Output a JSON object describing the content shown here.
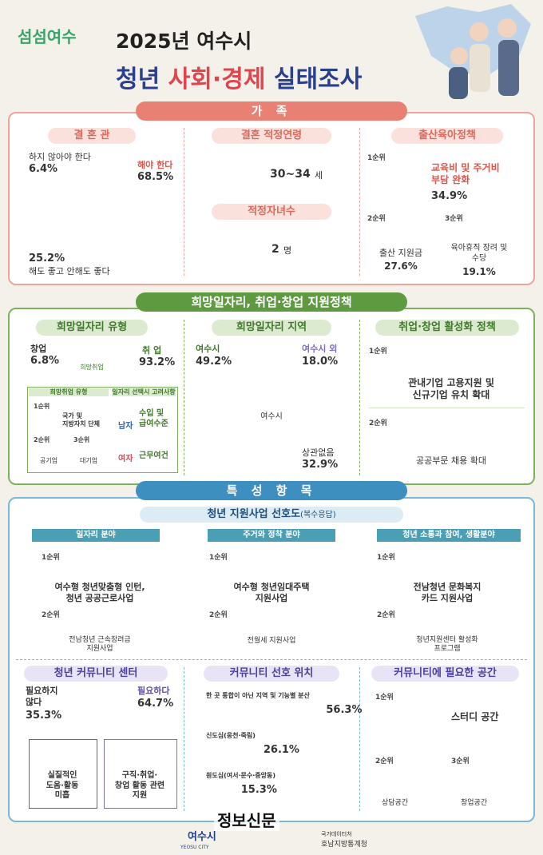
{
  "header": {
    "logo": "섬섬여수",
    "title_line1": "2025년 여수시",
    "title_a": "청년",
    "title_b": "사회·경제",
    "title_c": "실태조사"
  },
  "family": {
    "title": "가  족",
    "marriage_view": {
      "title": "결 혼 관",
      "items": [
        {
          "label": "해야 한다",
          "value": 68.5,
          "value_label": "68.5%",
          "color": "#e8645a"
        },
        {
          "label": "해도 좋고 안해도 좋다",
          "value": 25.2,
          "value_label": "25.2%",
          "color": "#f6c1ba"
        },
        {
          "label": "하지 않아야 한다",
          "value": 6.4,
          "value_label": "6.4%",
          "color": "#d9d9d9"
        }
      ]
    },
    "marriage_age": {
      "title": "결혼 적정연령",
      "value": "30~34",
      "unit": "세"
    },
    "children": {
      "title": "적정자녀수",
      "value": "2",
      "unit": "명"
    },
    "birth_policy": {
      "title": "출산육아정책",
      "ranks": [
        {
          "rank": "1순위",
          "label": "교육비 및 주거비\n부담 완화",
          "value": "34.9%"
        },
        {
          "rank": "2순위",
          "label": "출산 지원금",
          "value": "27.6%"
        },
        {
          "rank": "3순위",
          "label": "육아휴직 장려 및\n수당",
          "value": "19.1%"
        }
      ]
    }
  },
  "jobs": {
    "title": "희망일자리, 취업·창업 지원정책",
    "job_type": {
      "title": "희망일자리 유형",
      "center": "희망취업",
      "items": [
        {
          "label": "창업",
          "value": 6.8,
          "value_label": "6.8%",
          "color": "#cfcfcf"
        },
        {
          "label": "취 업",
          "value": 93.2,
          "value_label": "93.2%",
          "color": "#5e9a3f"
        }
      ],
      "employment_type": {
        "title": "희망취업 유형",
        "ranks": [
          {
            "rank": "1순위",
            "label": "국가 및\n지방자치 단체"
          },
          {
            "rank": "2순위",
            "label": "공기업"
          },
          {
            "rank": "3순위",
            "label": "대기업"
          }
        ]
      },
      "selection_factors": {
        "title": "일자리 선택시 고려사항",
        "items": [
          {
            "group": "남자",
            "label": "수입 및\n급여수준"
          },
          {
            "group": "여자",
            "label": "근무여건"
          }
        ]
      }
    },
    "job_region": {
      "title": "희망일자리 지역",
      "center": "여수시",
      "items": [
        {
          "label": "여수시 외",
          "value": 18.0,
          "value_label": "18.0%",
          "color": "#a99bd6"
        },
        {
          "label": "상관없음",
          "value": 32.9,
          "value_label": "32.9%",
          "color": "#f0e8d8"
        },
        {
          "label": "여수시",
          "value": 49.2,
          "value_label": "49.2%",
          "color": "#5e9a3f"
        }
      ]
    },
    "activation_policy": {
      "title": "취업·창업 활성화 정책",
      "ranks": [
        {
          "rank": "1순위",
          "label": "관내기업 고용지원 및\n신규기업 유치 확대"
        },
        {
          "rank": "2순위",
          "label": "공공부문 채용 확대"
        }
      ]
    }
  },
  "features": {
    "title": "특 성 항 목",
    "support_pref": {
      "title": "청년 지원사업 선호도",
      "note": "(복수응답)",
      "fields": [
        {
          "title": "일자리 분야",
          "ranks": [
            {
              "rank": "1순위",
              "label": "여수형 청년맞춤형 인턴,\n청년 공공근로사업"
            },
            {
              "rank": "2순위",
              "label": "전남청년 근속장려금\n지원사업"
            }
          ]
        },
        {
          "title": "주거와 정착 분야",
          "ranks": [
            {
              "rank": "1순위",
              "label": "여수형 청년임대주택\n지원사업"
            },
            {
              "rank": "2순위",
              "label": "전월세 지원사업"
            }
          ]
        },
        {
          "title": "청년 소통과 참여, 생활분야",
          "ranks": [
            {
              "rank": "1순위",
              "label": "전남청년 문화복지\n카드 지원사업"
            },
            {
              "rank": "2순위",
              "label": "청년지원센터 활성화\n프로그램"
            }
          ]
        }
      ]
    },
    "community_center": {
      "title": "청년 커뮤니티 센터",
      "items": [
        {
          "label": "필요하지\n않다",
          "value": 35.3,
          "value_label": "35.3%",
          "color": "#d6d6d6",
          "reason": "실질적인\n도움·활동\n미흡"
        },
        {
          "label": "필요하다",
          "value": 64.7,
          "value_label": "64.7%",
          "color": "#7b6cc4",
          "reason": "구직·취업·\n창업 활동 관련\n지원"
        }
      ]
    },
    "community_location": {
      "title": "커뮤니티 선호 위치",
      "items": [
        {
          "label": "한 곳 통합이 아닌 지역 및 기능별 분산",
          "value": 56.3,
          "value_label": "56.3%",
          "color": "#5b4fa8"
        },
        {
          "label": "신도심(웅천·죽림)",
          "value": 26.1,
          "value_label": "26.1%",
          "color": "#8a80c8"
        },
        {
          "label": "원도심(여서·문수·중앙동)",
          "value": 15.3,
          "value_label": "15.3%",
          "color": "#c1bbe3"
        }
      ]
    },
    "community_space": {
      "title": "커뮤니티에 필요한 공간",
      "ranks": [
        {
          "rank": "1순위",
          "label": "스터디 공간"
        },
        {
          "rank": "2순위",
          "label": "상담공간"
        },
        {
          "rank": "3순위",
          "label": "창업공간"
        }
      ]
    }
  },
  "footer": {
    "city": "여수시",
    "city_en": "YEOSU CITY",
    "watermark": "정보신문",
    "agency_top": "국가데이터처",
    "agency": "호남지방통계청"
  }
}
